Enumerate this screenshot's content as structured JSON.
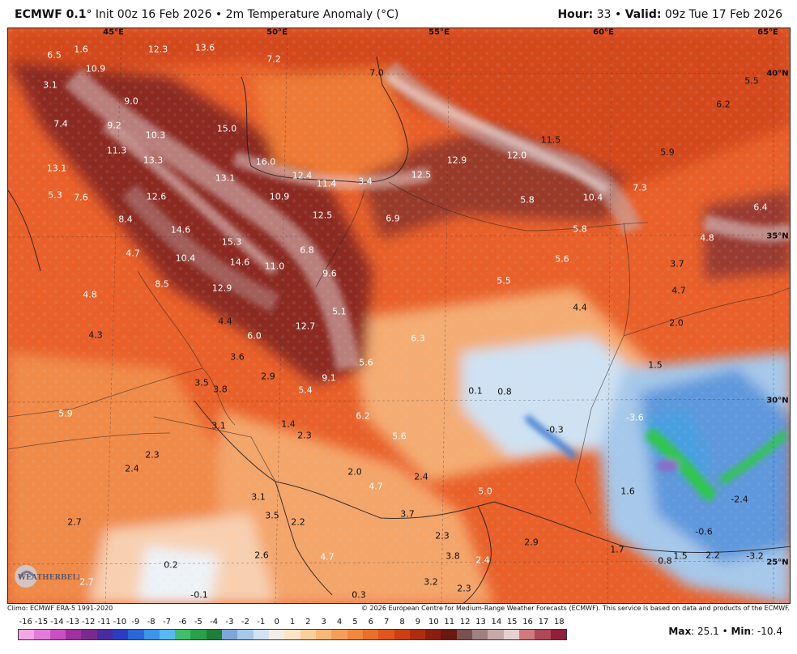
{
  "header": {
    "model": "ECMWF 0.1",
    "init": "° Init 00z 16 Feb 2026 • 2m Temperature Anomaly (°C)",
    "hour_label": "Hour:",
    "hour_value": "33",
    "valid_label": "Valid:",
    "valid_value": "09z Tue 17 Feb 2026"
  },
  "coords": [
    "45°E",
    "50°E",
    "55°E",
    "60°E",
    "65°E",
    "40°N",
    "35°N",
    "30°N",
    "25°N"
  ],
  "anomaly_labels": [
    "6.5",
    "1.6",
    "12.3",
    "13.6",
    "7.2",
    "7.0",
    "5.5",
    "3.1",
    "10.9",
    "9.0",
    "6.2",
    "7.4",
    "9.2",
    "10.3",
    "15.0",
    "11.5",
    "11.3",
    "13.3",
    "5.9",
    "13.1",
    "16.0",
    "12.4",
    "11.4",
    "3.4",
    "12.5",
    "12.9",
    "12.0",
    "5.3",
    "7.6",
    "12.6",
    "13.1",
    "10.9",
    "6.9",
    "5.8",
    "10.4",
    "7.3",
    "8.4",
    "12.5",
    "5.8",
    "6.4",
    "14.6",
    "15.3",
    "4.8",
    "4.7",
    "10.4",
    "14.6",
    "11.0",
    "6.8",
    "5.6",
    "3.7",
    "4.7",
    "8.5",
    "12.9",
    "9.6",
    "5.5",
    "4.8",
    "5.1",
    "4.4",
    "4.4",
    "12.7",
    "2.0",
    "4.3",
    "6.0",
    "6.3",
    "3.6",
    "5.6",
    "1.5",
    "3.5",
    "2.9",
    "9.1",
    "3.8",
    "5.4",
    "0.1",
    "0.8",
    "5.9",
    "6.2",
    "-3.6",
    "3.1",
    "1.4",
    "2.3",
    "5.6",
    "-0.3",
    "2.3",
    "2.4",
    "2.0",
    "2.4",
    "3.1",
    "4.7",
    "5.0",
    "1.6",
    "-2.4",
    "3.5",
    "2.2",
    "3.7",
    "2.7",
    "2.3",
    "-0.6",
    "2.9",
    "1.7",
    "0.8",
    "1.5",
    "2.2",
    "-3.2",
    "2.6",
    "4.7",
    "3.8",
    "2.4",
    "0.2",
    "2.7",
    "3.2",
    "2.3",
    "-0.1",
    "0.3"
  ],
  "footer": {
    "climo": "Climo: ECMWF ERA-5 1991-2020",
    "copyright": "© 2026 European Centre for Medium-Range Weather Forecasts (ECMWF). This service is based on data and products of the ECMWF."
  },
  "colorbar": {
    "ticks": [
      "-16",
      "-15",
      "-14",
      "-13",
      "-12",
      "-11",
      "-10",
      "-9",
      "-8",
      "-7",
      "-6",
      "-5",
      "-4",
      "-3",
      "-2",
      "-1",
      "0",
      "1",
      "2",
      "3",
      "4",
      "5",
      "6",
      "7",
      "8",
      "9",
      "10",
      "11",
      "12",
      "13",
      "14",
      "15",
      "16",
      "17",
      "18"
    ],
    "colors": [
      "#f4a6e8",
      "#e47bd8",
      "#c94fc2",
      "#a1309f",
      "#7a2a8f",
      "#4a2aa0",
      "#2a3cbf",
      "#2a66d8",
      "#3a94e8",
      "#5ab8f0",
      "#3fbf6a",
      "#2aa04a",
      "#1e7e3a",
      "#7fa6d8",
      "#a8c8ea",
      "#d0e2f4",
      "#f2eee6",
      "#fde4c6",
      "#fbcf9c",
      "#f8b878",
      "#f5a05a",
      "#f08840",
      "#ea6e2c",
      "#e0561e",
      "#cc4014",
      "#b02c10",
      "#8c1e10",
      "#6a1810",
      "#7a5050",
      "#a08080",
      "#c8a8a8",
      "#e6d0d0",
      "#d07a80",
      "#b04858",
      "#902038"
    ]
  },
  "stats": {
    "max_label": "Max",
    "max_value": ": 25.1 •",
    "min_label": "Min",
    "min_value": ": -10.4"
  },
  "logo_text": "WEATHERBELL"
}
